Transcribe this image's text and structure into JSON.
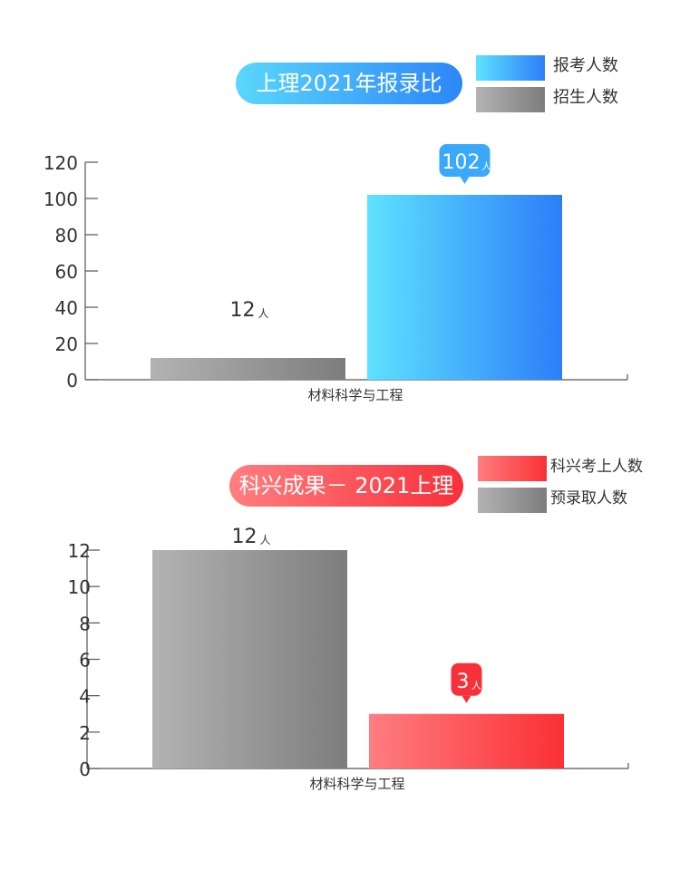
{
  "charts": [
    {
      "pill_text": "上理2021年报录比",
      "colors": {
        "pill_from": "#5ad7fb",
        "pill_to": "#2d86f8"
      },
      "legend": [
        {
          "label": "报考人数",
          "from": "#5ee2ff",
          "to": "#2c7ef8"
        },
        {
          "label": "招生人数",
          "from": "#b3b3b3",
          "to": "#7d7d7d"
        }
      ],
      "chart_data": {
        "type": "bar",
        "categories": [
          "材料科学与工程"
        ],
        "series": [
          {
            "name": "招生人数",
            "values": [
              12
            ],
            "label": "12",
            "unit": "人"
          },
          {
            "name": "报考人数",
            "values": [
              102
            ],
            "label": "102",
            "unit": "人"
          }
        ],
        "yticks": [
          "0",
          "20",
          "40",
          "60",
          "80",
          "100",
          "120"
        ],
        "ylim": [
          0,
          120
        ],
        "grid": false,
        "legend_position": "top-right"
      }
    },
    {
      "pill_text": "科兴成果－ 2021上理",
      "colors": {
        "pill_from": "#ff7e80",
        "pill_to": "#f7303a"
      },
      "legend": [
        {
          "label": "科兴考上人数",
          "from": "#ff7d80",
          "to": "#fa3035"
        },
        {
          "label": "预录取人数",
          "from": "#b3b3b3",
          "to": "#7d7d7d"
        }
      ],
      "chart_data": {
        "type": "bar",
        "categories": [
          "材料科学与工程"
        ],
        "series": [
          {
            "name": "预录取人数",
            "values": [
              12
            ],
            "label": "12",
            "unit": "人"
          },
          {
            "name": "科兴考上人数",
            "values": [
              3
            ],
            "label": "3",
            "unit": "人"
          }
        ],
        "yticks": [
          "0",
          "2",
          "4",
          "6",
          "8",
          "10",
          "12"
        ],
        "ylim": [
          0,
          12
        ],
        "grid": false,
        "legend_position": "top-right"
      }
    }
  ]
}
